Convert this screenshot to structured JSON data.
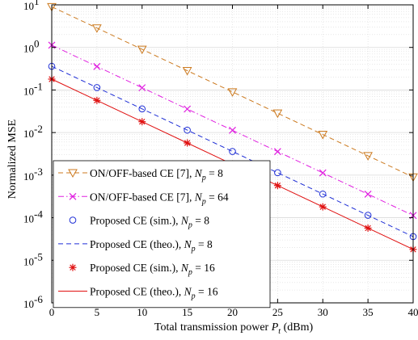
{
  "chart_data": {
    "type": "line",
    "xlabel": "Total transmission power",
    "xlabel_symbol": "P",
    "xlabel_subscript": "t",
    "xlabel_unit": "(dBm)",
    "ylabel": "Normalized MSE",
    "x_ticks": [
      "0",
      "5",
      "10",
      "15",
      "20",
      "25",
      "30",
      "35",
      "40"
    ],
    "y_ticks": [
      {
        "base": "10",
        "exp": "-6"
      },
      {
        "base": "10",
        "exp": "-5"
      },
      {
        "base": "10",
        "exp": "-4"
      },
      {
        "base": "10",
        "exp": "-3"
      },
      {
        "base": "10",
        "exp": "-2"
      },
      {
        "base": "10",
        "exp": "-1"
      },
      {
        "base": "10",
        "exp": "0"
      },
      {
        "base": "10",
        "exp": "1"
      }
    ],
    "xlim": [
      0,
      40
    ],
    "ylim": [
      1e-06,
      10
    ],
    "y_scale": "log",
    "grid": true,
    "legend_position": "bottom-left",
    "x": [
      0,
      5,
      10,
      15,
      20,
      25,
      30,
      35,
      40
    ],
    "series": [
      {
        "name": "ON/OFF-based CE [7],",
        "np_value": "8",
        "color": "#cc7a1f",
        "line": "dashed",
        "marker": "triangle-down",
        "values": [
          9,
          2.85,
          0.9,
          0.285,
          0.09,
          0.0285,
          0.009,
          0.00285,
          0.0009
        ]
      },
      {
        "name": "ON/OFF-based CE [7],",
        "np_value": "64",
        "color": "#e020e0",
        "line": "dashdot",
        "marker": "x",
        "values": [
          1.13,
          0.357,
          0.113,
          0.0357,
          0.0113,
          0.00357,
          0.00113,
          0.000357,
          0.000113
        ]
      },
      {
        "name": "Proposed CE (sim.),",
        "np_value": "8",
        "color": "#1f2fd6",
        "line": "none",
        "marker": "circle",
        "values": [
          0.36,
          0.114,
          0.036,
          0.0114,
          0.0036,
          0.00114,
          0.00036,
          0.000114,
          3.6e-05
        ]
      },
      {
        "name": "Proposed CE (theo.),",
        "np_value": "8",
        "color": "#1f2fd6",
        "line": "dashed",
        "marker": "none",
        "values": [
          0.36,
          0.114,
          0.036,
          0.0114,
          0.0036,
          0.00114,
          0.00036,
          0.000114,
          3.6e-05
        ]
      },
      {
        "name": "Proposed CE (sim.),",
        "np_value": "16",
        "color": "#e01010",
        "line": "none",
        "marker": "star",
        "values": [
          0.18,
          0.057,
          0.018,
          0.0057,
          0.0018,
          0.00057,
          0.00018,
          5.7e-05,
          1.8e-05
        ]
      },
      {
        "name": "Proposed CE (theo.),",
        "np_value": "16",
        "color": "#e01010",
        "line": "solid",
        "marker": "none",
        "values": [
          0.18,
          0.057,
          0.018,
          0.0057,
          0.0018,
          0.00057,
          0.00018,
          5.7e-05,
          1.8e-05
        ]
      }
    ],
    "legend_np_symbol": "N",
    "legend_np_subscript": "p",
    "legend_np_eq": "="
  }
}
